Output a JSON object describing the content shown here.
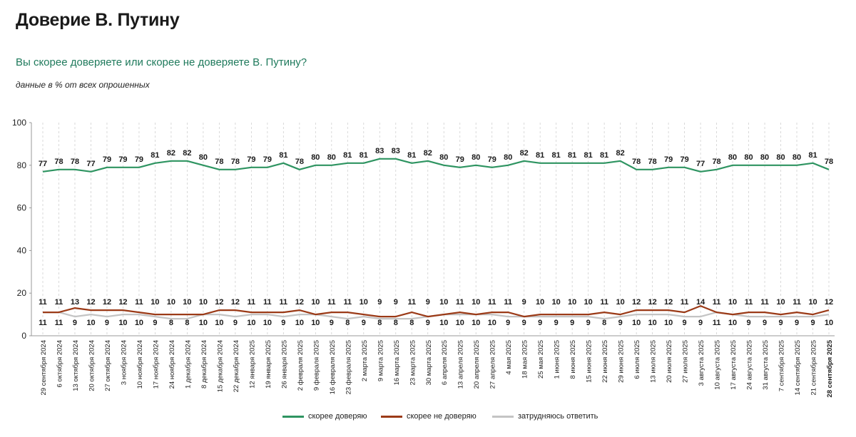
{
  "title": "Доверие В. Путину",
  "subtitle": "Вы скорее доверяете или скорее не доверяете В. Путину?",
  "note": "данные в % от всех опрошенных",
  "chart_data": {
    "type": "line",
    "ylim": [
      0,
      100
    ],
    "yticks": [
      0,
      20,
      40,
      60,
      80,
      100
    ],
    "grid": "vertical dashed",
    "legend_position": "bottom",
    "categories": [
      "29 сентября 2024",
      "6 октября 2024",
      "13 октября 2024",
      "20 октября 2024",
      "27 октября 2024",
      "3 ноября 2024",
      "10 ноября 2024",
      "17 ноября 2024",
      "24 ноября 2024",
      "1 декабря 2024",
      "8 декабря 2024",
      "15 декабря 2024",
      "22 декабря 2024",
      "12 января 2025",
      "19 января 2025",
      "26 января 2025",
      "2 февраля 2025",
      "9 февраля 2025",
      "16 февраля 2025",
      "23 февраля 2025",
      "2 марта 2025",
      "9 марта 2025",
      "16 марта 2025",
      "23 марта 2025",
      "30 марта 2025",
      "6 апреля 2025",
      "13 апреля 2025",
      "20 апреля 2025",
      "27 апреля 2025",
      "4 мая 2025",
      "18 мая 2025",
      "25 мая 2025",
      "1 июня 2025",
      "8 июня 2025",
      "15 июня 2025",
      "22 июня 2025",
      "29 июня 2025",
      "6 июля 2025",
      "13 июля 2025",
      "20 июля 2025",
      "27 июля 2025",
      "3 августа 2025",
      "10 августа 2025",
      "17 августа 2025",
      "24 августа 2025",
      "31 августа 2025",
      "7 сентября 2025",
      "14 сентября 2025",
      "21 сентября 2025",
      "28 сентября 2025"
    ],
    "series": [
      {
        "name": "скорее доверяю",
        "color": "#2e9461",
        "label_position": "above",
        "values": [
          77,
          78,
          78,
          77,
          79,
          79,
          79,
          81,
          82,
          82,
          80,
          78,
          78,
          79,
          79,
          81,
          78,
          80,
          80,
          81,
          81,
          83,
          83,
          81,
          82,
          80,
          79,
          80,
          79,
          80,
          82,
          81,
          81,
          81,
          81,
          81,
          82,
          78,
          78,
          79,
          79,
          77,
          78,
          80,
          80,
          80,
          80,
          80,
          81,
          78
        ]
      },
      {
        "name": "скорее не доверяю",
        "color": "#9b3a17",
        "label_position": "above",
        "values": [
          11,
          11,
          13,
          12,
          12,
          12,
          11,
          10,
          10,
          10,
          10,
          12,
          12,
          11,
          11,
          11,
          12,
          10,
          11,
          11,
          10,
          9,
          9,
          11,
          9,
          10,
          11,
          10,
          11,
          11,
          9,
          10,
          10,
          10,
          10,
          11,
          10,
          12,
          12,
          12,
          11,
          14,
          11,
          10,
          11,
          11,
          10,
          11,
          10,
          12
        ]
      },
      {
        "name": "затрудняюсь ответить",
        "color": "#c4c4c4",
        "label_position": "below",
        "values": [
          11,
          11,
          9,
          10,
          9,
          10,
          10,
          9,
          8,
          8,
          10,
          10,
          9,
          10,
          10,
          9,
          10,
          10,
          9,
          8,
          9,
          8,
          8,
          8,
          9,
          10,
          10,
          10,
          10,
          9,
          9,
          9,
          9,
          9,
          9,
          8,
          9,
          10,
          10,
          10,
          9,
          9,
          11,
          10,
          9,
          9,
          9,
          9,
          9,
          10
        ]
      }
    ]
  }
}
